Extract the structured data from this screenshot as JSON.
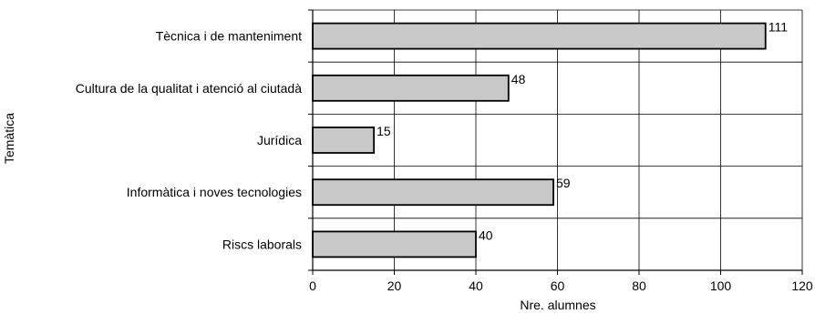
{
  "chart_data": {
    "type": "bar",
    "orientation": "horizontal",
    "categories": [
      "Tècnica i de manteniment",
      "Cultura de la qualitat i atenció al ciutadà",
      "Jurídica",
      "Informàtica i noves tecnologies",
      "Riscs laborals"
    ],
    "values": [
      111,
      48,
      15,
      59,
      40
    ],
    "data_labels": [
      "111",
      "48",
      "15",
      "59",
      "40"
    ],
    "xlabel": "Nre. alumnes",
    "ylabel": "Temàtica",
    "xlim": [
      0,
      120
    ],
    "xticks": [
      "0",
      "20",
      "40",
      "60",
      "80",
      "100",
      "120"
    ],
    "grid": true,
    "legend": "none",
    "bar_color": "#c8c8c8",
    "bar_edge_color": "#000000",
    "grid_color": "#000000"
  }
}
